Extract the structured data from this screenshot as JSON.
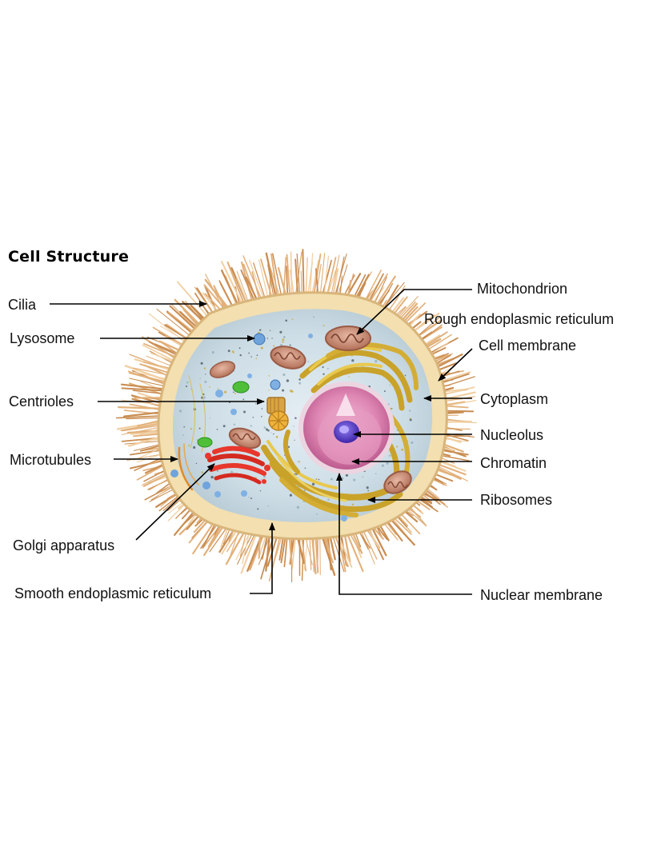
{
  "title": "Cell Structure",
  "labels": {
    "cilia": "Cilia",
    "lysosome": "Lysosome",
    "centrioles": "Centrioles",
    "microtubules": "Microtubules",
    "golgi": "Golgi apparatus",
    "smooth_er": "Smooth endoplasmic reticulum",
    "mitochondrion": "Mitochondrion",
    "rough_er": "Rough endoplasmic reticulum",
    "cell_membrane": "Cell membrane",
    "cytoplasm": "Cytoplasm",
    "nucleolus": "Nucleolus",
    "chromatin": "Chromatin",
    "ribosomes": "Ribosomes",
    "nuclear_membrane": "Nuclear membrane"
  },
  "colors": {
    "cilia": "#d9a46a",
    "membrane": "#f5e3b8",
    "cytoplasm": "#cfe0e8",
    "nucleus": "#d77aa8",
    "nucleolus": "#5a3fc8",
    "rough_er": "#d8b43a",
    "golgi": "#e8372c",
    "mitochondrion": "#c98a72",
    "lysosome": "#6fa3dc",
    "vesicle_green": "#4fbf3a"
  }
}
